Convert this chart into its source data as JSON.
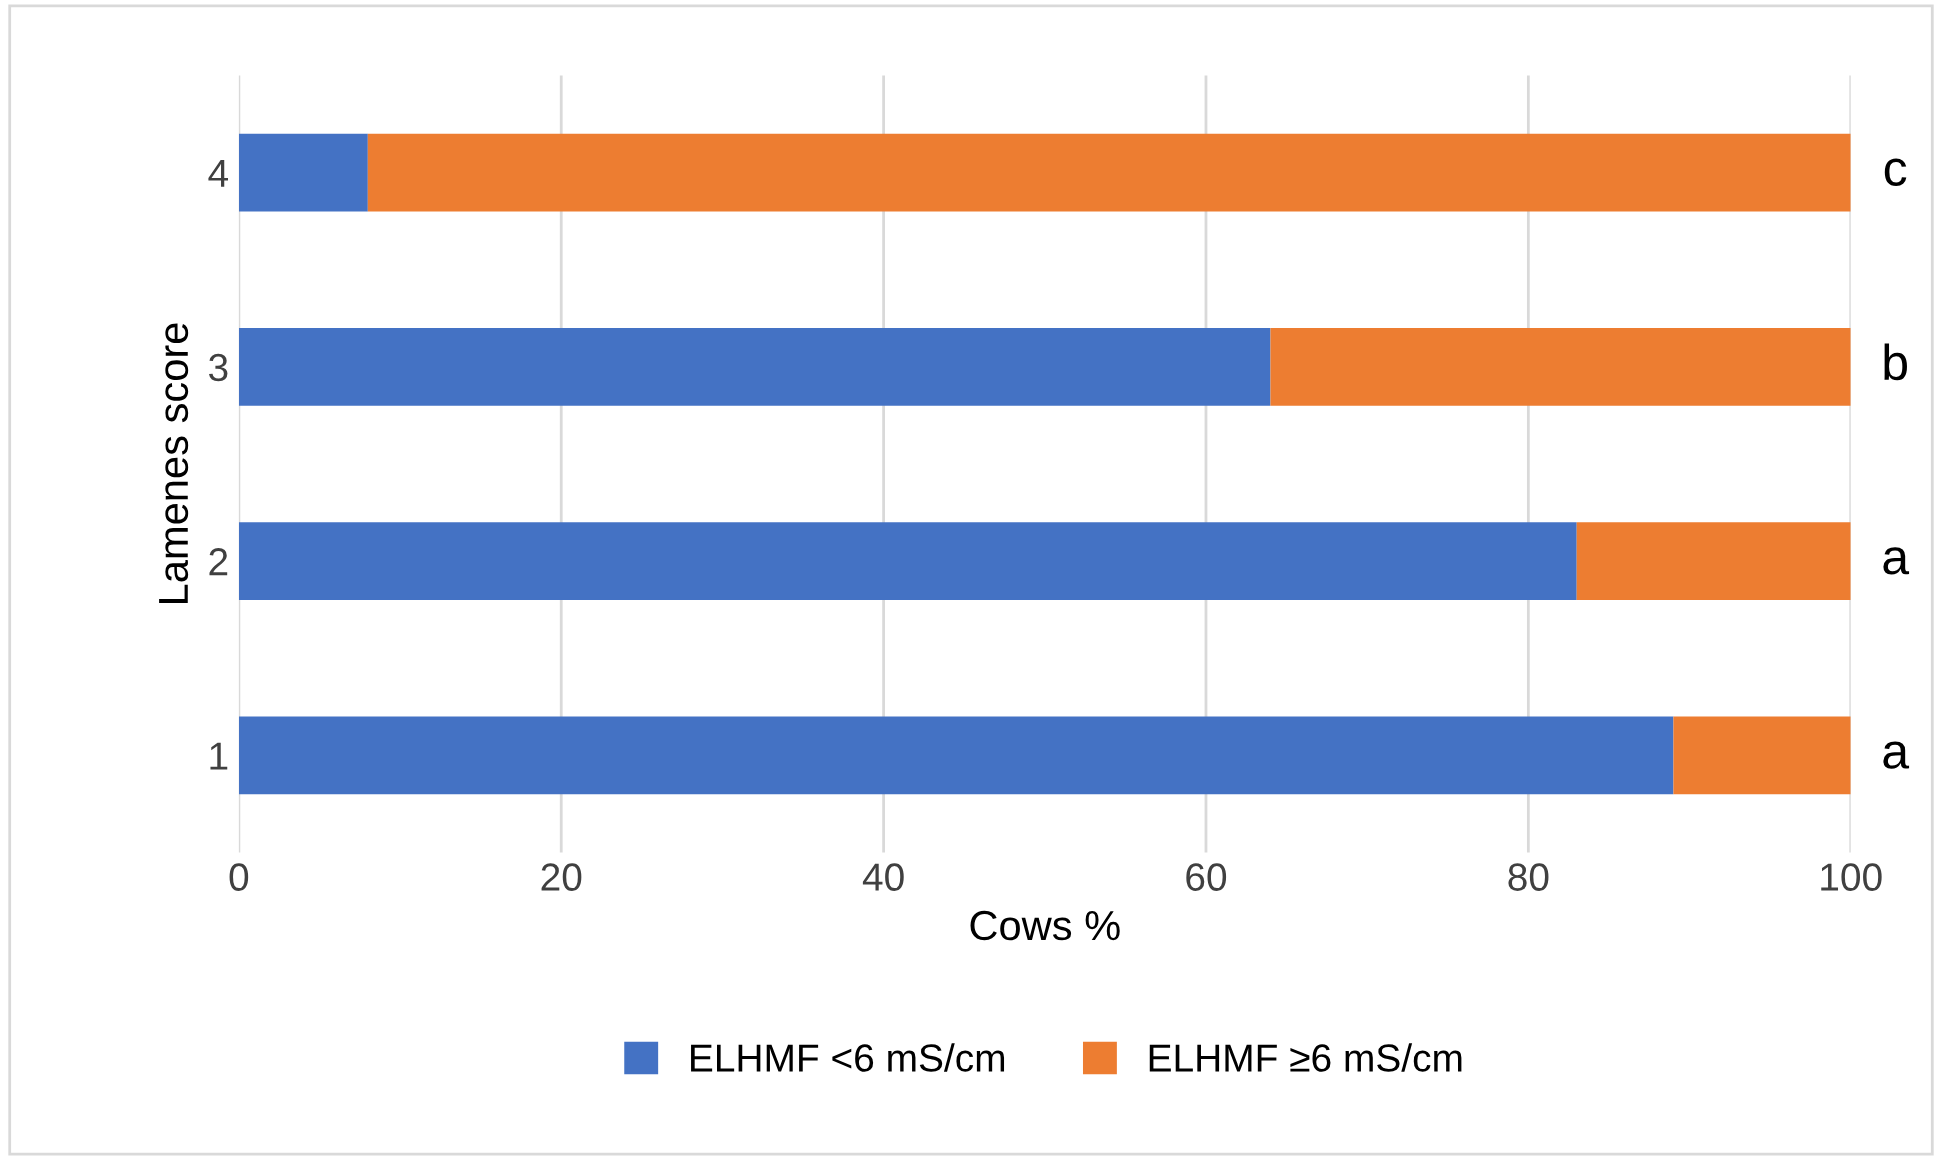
{
  "chart_data": {
    "type": "bar",
    "orientation": "horizontal",
    "stacked": true,
    "xlabel": "Cows %",
    "ylabel": "Lamenes score",
    "categories": [
      "4",
      "3",
      "2",
      "1"
    ],
    "series": [
      {
        "name": "ELHMF <6 mS/cm",
        "color": "#4472c4",
        "values": [
          8,
          64,
          83,
          89
        ]
      },
      {
        "name": "ELHMF ≥6 mS/cm",
        "color": "#ed7d31",
        "values": [
          92,
          36,
          17,
          11
        ]
      }
    ],
    "xlim": [
      0,
      100
    ],
    "xticks": [
      0,
      20,
      40,
      60,
      80,
      100
    ],
    "grid": "x",
    "legend": "bottom",
    "annotations": [
      "c",
      "b",
      "a",
      "a"
    ]
  }
}
